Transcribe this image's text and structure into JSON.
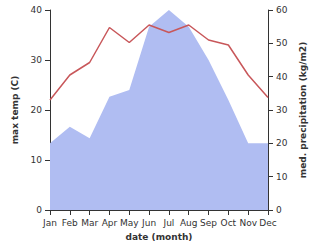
{
  "chart_data": {
    "type": "line",
    "x_label": "date (month)",
    "y_label": "max temp (C)",
    "y2_label": "med. precipitation (kg/m2)",
    "categories": [
      "Jan",
      "Feb",
      "Mar",
      "Apr",
      "May",
      "Jun",
      "Jul",
      "Aug",
      "Sep",
      "Oct",
      "Nov",
      "Dec"
    ],
    "series": [
      {
        "type": "area",
        "axis": "y2",
        "color": "#b0bdf2",
        "values": [
          20,
          25,
          21.5,
          34,
          36,
          55,
          60,
          55,
          45,
          33,
          20,
          20
        ]
      },
      {
        "type": "line",
        "color": "#c8575a",
        "values": [
          22,
          27,
          29.5,
          36.5,
          33.5,
          37,
          35.5,
          37,
          34,
          33,
          27,
          22.5
        ]
      }
    ],
    "ylim": [
      0,
      40
    ],
    "yticks": [
      0,
      10,
      20,
      30,
      40
    ],
    "y2lim": [
      0,
      60
    ],
    "y2ticks": [
      0,
      10,
      20,
      30,
      40,
      50,
      60
    ],
    "grid": false
  }
}
